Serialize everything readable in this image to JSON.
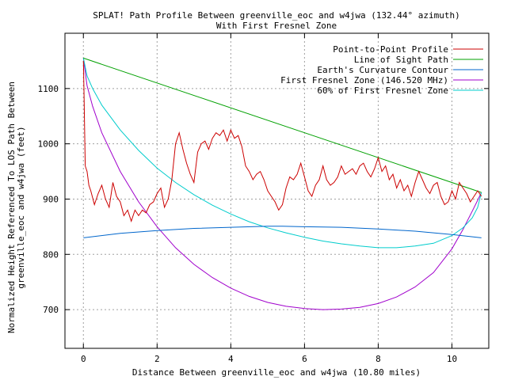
{
  "chart_data": {
    "type": "line",
    "title": "SPLAT! Path Profile Between greenville_eoc and w4jwa (132.44° azimuth)",
    "subtitle": "With First Fresnel Zone",
    "xlabel": "Distance Between greenville_eoc and w4jwa (10.80 miles)",
    "ylabel_line1": "Normalized Height Referenced To LOS Path Between",
    "ylabel_line2": "greenville_eoc and w4jwa (feet)",
    "xlim": [
      -0.5,
      11.0
    ],
    "ylim": [
      630,
      1200
    ],
    "grid": true,
    "legend_position": "top-right",
    "x_ticks": [
      0,
      2,
      4,
      6,
      8,
      10
    ],
    "x_tick_labels": [
      "0",
      "2",
      "4",
      "6",
      "8",
      "10"
    ],
    "y_ticks": [
      700,
      800,
      900,
      1000,
      1100
    ],
    "y_tick_labels": [
      "700",
      "800",
      "900",
      "1000",
      "1100"
    ],
    "series": [
      {
        "name": "Point-to-Point Profile",
        "color": "#cc0000",
        "x": [
          0,
          0.02,
          0.05,
          0.1,
          0.15,
          0.2,
          0.3,
          0.4,
          0.5,
          0.6,
          0.7,
          0.8,
          0.9,
          1.0,
          1.1,
          1.2,
          1.3,
          1.4,
          1.5,
          1.6,
          1.7,
          1.8,
          1.9,
          2.0,
          2.1,
          2.2,
          2.3,
          2.4,
          2.5,
          2.6,
          2.7,
          2.8,
          2.9,
          3.0,
          3.1,
          3.2,
          3.3,
          3.4,
          3.5,
          3.6,
          3.7,
          3.8,
          3.9,
          4.0,
          4.1,
          4.2,
          4.3,
          4.4,
          4.5,
          4.6,
          4.7,
          4.8,
          4.9,
          5.0,
          5.1,
          5.2,
          5.3,
          5.4,
          5.5,
          5.6,
          5.7,
          5.8,
          5.9,
          6.0,
          6.1,
          6.2,
          6.3,
          6.4,
          6.5,
          6.6,
          6.7,
          6.8,
          6.9,
          7.0,
          7.1,
          7.2,
          7.3,
          7.4,
          7.5,
          7.6,
          7.7,
          7.8,
          7.9,
          8.0,
          8.1,
          8.2,
          8.3,
          8.4,
          8.5,
          8.6,
          8.7,
          8.8,
          8.9,
          9.0,
          9.1,
          9.2,
          9.3,
          9.4,
          9.5,
          9.6,
          9.7,
          9.8,
          9.9,
          10.0,
          10.1,
          10.2,
          10.3,
          10.4,
          10.5,
          10.6,
          10.7,
          10.8
        ],
        "y": [
          1150,
          1080,
          960,
          950,
          925,
          915,
          890,
          910,
          925,
          900,
          885,
          930,
          905,
          895,
          870,
          880,
          860,
          880,
          870,
          880,
          875,
          890,
          895,
          910,
          920,
          885,
          900,
          935,
          1000,
          1020,
          990,
          965,
          945,
          930,
          985,
          1000,
          1005,
          990,
          1010,
          1020,
          1015,
          1025,
          1005,
          1025,
          1010,
          1015,
          995,
          960,
          950,
          935,
          945,
          950,
          935,
          915,
          905,
          895,
          880,
          890,
          920,
          940,
          935,
          945,
          965,
          940,
          915,
          905,
          925,
          935,
          960,
          935,
          925,
          930,
          940,
          960,
          945,
          950,
          955,
          945,
          960,
          965,
          950,
          940,
          955,
          975,
          950,
          960,
          935,
          945,
          920,
          935,
          915,
          925,
          905,
          930,
          950,
          935,
          920,
          910,
          925,
          930,
          905,
          890,
          895,
          915,
          900,
          930,
          920,
          910,
          895,
          905,
          915,
          905
        ]
      },
      {
        "name": "Line of Sight Path",
        "color": "#00a000",
        "x": [
          0,
          10.8
        ],
        "y": [
          1155,
          912
        ]
      },
      {
        "name": "Earth's Curvature Contour",
        "color": "#0066cc",
        "x": [
          0,
          1,
          2,
          3,
          4,
          5,
          5.4,
          6,
          7,
          8,
          9,
          10,
          10.8
        ],
        "y": [
          830,
          838,
          843,
          847,
          849,
          851,
          851,
          850,
          849,
          846,
          842,
          836,
          830
        ]
      },
      {
        "name": "First Fresnel Zone (146.520 MHz)",
        "color": "#a000cc",
        "x": [
          0,
          0.1,
          0.25,
          0.5,
          1,
          1.5,
          2,
          2.5,
          3,
          3.5,
          4,
          4.5,
          5,
          5.5,
          6,
          6.5,
          7,
          7.5,
          8,
          8.5,
          9,
          9.5,
          10,
          10.3,
          10.55,
          10.7,
          10.8
        ],
        "y": [
          1155,
          1105,
          1068,
          1020,
          950,
          895,
          850,
          812,
          782,
          758,
          739,
          724,
          713,
          706,
          702,
          700,
          701,
          704,
          711,
          723,
          741,
          767,
          810,
          845,
          878,
          898,
          912
        ]
      },
      {
        "name": "60% of First Fresnel Zone",
        "color": "#00cccc",
        "x": [
          0,
          0.1,
          0.25,
          0.5,
          1,
          1.5,
          2,
          2.5,
          3,
          3.5,
          4,
          4.5,
          5,
          5.5,
          6,
          6.5,
          7,
          7.5,
          8,
          8.5,
          9,
          9.5,
          10,
          10.3,
          10.55,
          10.7,
          10.8
        ],
        "y": [
          1155,
          1123,
          1100,
          1070,
          1025,
          988,
          956,
          930,
          908,
          889,
          873,
          859,
          848,
          839,
          831,
          824,
          819,
          815,
          812,
          812,
          815,
          820,
          834,
          848,
          866,
          885,
          912
        ]
      }
    ]
  }
}
